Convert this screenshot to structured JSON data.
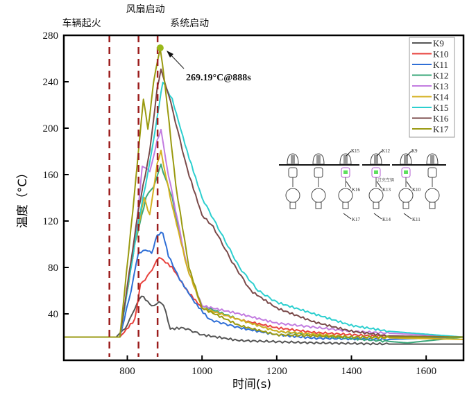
{
  "chart_data": {
    "type": "line",
    "xlabel": "时间(s)",
    "ylabel": "温度（°C）",
    "xlim": [
      630,
      1700
    ],
    "ylim": [
      0,
      280
    ],
    "xticks": [
      800,
      1000,
      1200,
      1400,
      1600
    ],
    "yticks": [
      40,
      80,
      120,
      160,
      200,
      240,
      280
    ],
    "legend_position": "top-right",
    "events": [
      {
        "label": "车辆起火",
        "x": 752
      },
      {
        "label": "风扇启动",
        "x": 830
      },
      {
        "label": "系统启动",
        "x": 881
      }
    ],
    "event_color": "#9b1c1c",
    "peak_annotation": {
      "text": "269.19°C@888s",
      "x": 888,
      "y": 269.19
    },
    "series": [
      {
        "name": "K9",
        "color": "#555555",
        "points": [
          [
            630,
            20
          ],
          [
            770,
            20
          ],
          [
            800,
            30
          ],
          [
            820,
            45
          ],
          [
            838,
            56
          ],
          [
            865,
            47
          ],
          [
            885,
            50
          ],
          [
            897,
            48
          ],
          [
            915,
            27
          ],
          [
            950,
            28
          ],
          [
            1000,
            22
          ],
          [
            1100,
            17
          ],
          [
            1300,
            15
          ],
          [
            1500,
            14
          ],
          [
            1700,
            14
          ]
        ]
      },
      {
        "name": "K10",
        "color": "#e8413c",
        "points": [
          [
            630,
            20
          ],
          [
            780,
            20
          ],
          [
            820,
            35
          ],
          [
            835,
            65
          ],
          [
            860,
            75
          ],
          [
            885,
            89
          ],
          [
            920,
            80
          ],
          [
            960,
            60
          ],
          [
            1000,
            45
          ],
          [
            1100,
            35
          ],
          [
            1200,
            28
          ],
          [
            1300,
            24
          ],
          [
            1450,
            21
          ],
          [
            1700,
            20
          ]
        ]
      },
      {
        "name": "K11",
        "color": "#2f6fd6",
        "points": [
          [
            630,
            20
          ],
          [
            780,
            20
          ],
          [
            810,
            60
          ],
          [
            830,
            93
          ],
          [
            855,
            95
          ],
          [
            865,
            92
          ],
          [
            880,
            108
          ],
          [
            895,
            110
          ],
          [
            910,
            90
          ],
          [
            940,
            70
          ],
          [
            980,
            50
          ],
          [
            1020,
            35
          ],
          [
            1100,
            28
          ],
          [
            1200,
            22
          ],
          [
            1300,
            19
          ],
          [
            1500,
            18
          ],
          [
            1700,
            20
          ]
        ]
      },
      {
        "name": "K12",
        "color": "#3aa77a",
        "points": [
          [
            630,
            20
          ],
          [
            780,
            20
          ],
          [
            820,
            100
          ],
          [
            850,
            140
          ],
          [
            870,
            150
          ],
          [
            890,
            168
          ],
          [
            920,
            140
          ],
          [
            960,
            80
          ],
          [
            1000,
            47
          ],
          [
            1100,
            35
          ],
          [
            1200,
            25
          ],
          [
            1350,
            20
          ],
          [
            1550,
            15
          ],
          [
            1700,
            20
          ]
        ]
      },
      {
        "name": "K13",
        "color": "#c27be0",
        "points": [
          [
            630,
            20
          ],
          [
            780,
            20
          ],
          [
            820,
            100
          ],
          [
            840,
            168
          ],
          [
            860,
            162
          ],
          [
            880,
            190
          ],
          [
            890,
            198
          ],
          [
            910,
            160
          ],
          [
            960,
            80
          ],
          [
            1000,
            47
          ],
          [
            1100,
            40
          ],
          [
            1200,
            32
          ],
          [
            1400,
            25
          ],
          [
            1700,
            20
          ]
        ]
      },
      {
        "name": "K14",
        "color": "#d4b020",
        "points": [
          [
            630,
            20
          ],
          [
            780,
            20
          ],
          [
            820,
            100
          ],
          [
            845,
            140
          ],
          [
            860,
            125
          ],
          [
            880,
            170
          ],
          [
            890,
            180
          ],
          [
            915,
            140
          ],
          [
            960,
            80
          ],
          [
            1000,
            45
          ],
          [
            1100,
            35
          ],
          [
            1200,
            25
          ],
          [
            1400,
            20
          ],
          [
            1700,
            18
          ]
        ]
      },
      {
        "name": "K15",
        "color": "#2ccfcf",
        "points": [
          [
            630,
            20
          ],
          [
            780,
            20
          ],
          [
            830,
            120
          ],
          [
            860,
            170
          ],
          [
            880,
            210
          ],
          [
            895,
            240
          ],
          [
            920,
            225
          ],
          [
            960,
            180
          ],
          [
            1000,
            140
          ],
          [
            1050,
            110
          ],
          [
            1100,
            80
          ],
          [
            1150,
            60
          ],
          [
            1200,
            50
          ],
          [
            1300,
            40
          ],
          [
            1400,
            30
          ],
          [
            1500,
            25
          ],
          [
            1700,
            20
          ]
        ]
      },
      {
        "name": "K16",
        "color": "#7a4a4a",
        "points": [
          [
            630,
            20
          ],
          [
            780,
            20
          ],
          [
            830,
            130
          ],
          [
            860,
            180
          ],
          [
            880,
            235
          ],
          [
            890,
            250
          ],
          [
            910,
            230
          ],
          [
            960,
            165
          ],
          [
            1000,
            125
          ],
          [
            1030,
            115
          ],
          [
            1080,
            85
          ],
          [
            1130,
            60
          ],
          [
            1200,
            45
          ],
          [
            1300,
            33
          ],
          [
            1400,
            25
          ],
          [
            1500,
            21
          ],
          [
            1700,
            20
          ]
        ]
      },
      {
        "name": "K17",
        "color": "#9a9a10",
        "points": [
          [
            630,
            20
          ],
          [
            780,
            20
          ],
          [
            815,
            130
          ],
          [
            843,
            225
          ],
          [
            855,
            200
          ],
          [
            860,
            210
          ],
          [
            870,
            240
          ],
          [
            888,
            269.19
          ],
          [
            900,
            240
          ],
          [
            930,
            150
          ],
          [
            965,
            80
          ],
          [
            1000,
            45
          ],
          [
            1100,
            30
          ],
          [
            1200,
            22
          ],
          [
            1400,
            20
          ],
          [
            1700,
            20
          ]
        ]
      }
    ]
  },
  "inset": {
    "caption_vehicle": "过充车辆",
    "sensor_labels": {
      "col3": [
        "K15",
        "K16",
        "K17"
      ],
      "col4": [
        "K12",
        "K13",
        "K14"
      ],
      "col5": [
        "K9",
        "K10",
        "K11"
      ]
    }
  }
}
